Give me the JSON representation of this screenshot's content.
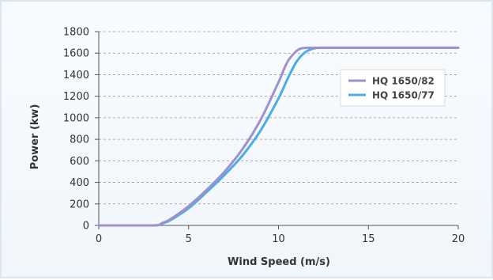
{
  "chart_data": {
    "type": "line",
    "title": "",
    "xlabel": "Wind Speed (m/s)",
    "ylabel": "Power (kw)",
    "xlim": [
      0,
      20
    ],
    "ylim": [
      0,
      1800
    ],
    "x_ticks": [
      0,
      5,
      10,
      15,
      20
    ],
    "y_ticks": [
      0,
      200,
      400,
      600,
      800,
      1000,
      1200,
      1400,
      1600,
      1800
    ],
    "grid": "horizontal dashed",
    "legend_position": "right",
    "series": [
      {
        "name": "HQ 1650/82",
        "color": "#a28fcb",
        "x": [
          0,
          3,
          3.5,
          4,
          5,
          6,
          7,
          8,
          9,
          10,
          10.5,
          11,
          11.3,
          11.6,
          12,
          13,
          15,
          20
        ],
        "y": [
          0,
          0,
          20,
          60,
          180,
          330,
          500,
          710,
          980,
          1330,
          1520,
          1620,
          1645,
          1650,
          1650,
          1650,
          1650,
          1650
        ]
      },
      {
        "name": "HQ 1650/77",
        "color": "#4aaee0",
        "x": [
          0,
          3,
          3.5,
          4,
          5,
          6,
          7,
          8,
          9,
          10,
          10.5,
          11,
          11.5,
          12,
          12.3,
          13,
          15,
          20
        ],
        "y": [
          0,
          0,
          15,
          50,
          160,
          310,
          470,
          650,
          880,
          1180,
          1360,
          1520,
          1610,
          1645,
          1650,
          1650,
          1650,
          1650
        ]
      }
    ]
  }
}
